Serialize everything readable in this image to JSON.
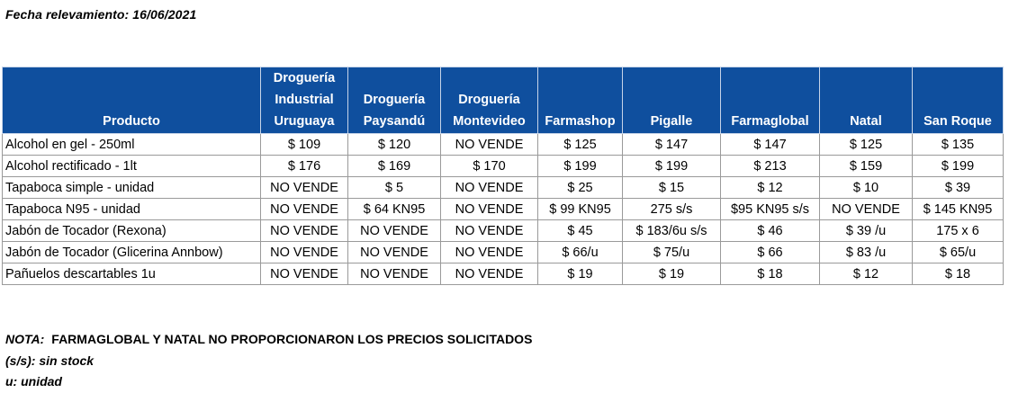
{
  "fecha": "Fecha relevamiento: 16/06/2021",
  "table": {
    "headers": [
      "Producto",
      "Droguería Industrial Uruguaya",
      "Droguería Paysandú",
      "Droguería Montevideo",
      "Farmashop",
      "Pigalle",
      "Farmaglobal",
      "Natal",
      "San Roque"
    ],
    "header_lines": [
      [
        "Producto"
      ],
      [
        "Droguería",
        "Industrial",
        "Uruguaya"
      ],
      [
        "Droguería",
        "Paysandú"
      ],
      [
        "Droguería",
        "Montevideo"
      ],
      [
        "Farmashop"
      ],
      [
        "Pigalle"
      ],
      [
        "Farmaglobal"
      ],
      [
        "Natal"
      ],
      [
        "San Roque"
      ]
    ],
    "rows": [
      [
        "Alcohol en gel  - 250ml",
        "$ 109",
        "$ 120",
        "NO VENDE",
        "$ 125",
        "$ 147",
        "$ 147",
        "$ 125",
        "$ 135"
      ],
      [
        "Alcohol rectificado - 1lt",
        "$ 176",
        "$ 169",
        "$ 170",
        "$ 199",
        "$ 199",
        "$ 213",
        "$ 159",
        "$ 199"
      ],
      [
        "Tapaboca simple - unidad",
        "NO VENDE",
        "$ 5",
        "NO VENDE",
        "$ 25",
        "$ 15",
        "$ 12",
        "$ 10",
        "$ 39"
      ],
      [
        "Tapaboca N95 - unidad",
        "NO VENDE",
        "$ 64  KN95",
        "NO VENDE",
        "$ 99  KN95",
        "275 s/s",
        "$95 KN95 s/s",
        "NO VENDE",
        "$ 145 KN95"
      ],
      [
        "Jabón de Tocador (Rexona)",
        "NO VENDE",
        "NO VENDE",
        "NO VENDE",
        "$ 45",
        "$ 183/6u s/s",
        "$ 46",
        "$ 39 /u",
        "175 x 6"
      ],
      [
        "Jabón de Tocador (Glicerina Annbow)",
        "NO VENDE",
        "NO VENDE",
        "NO VENDE",
        "$ 66/u",
        "$ 75/u",
        "$ 66",
        "$ 83 /u",
        "$ 65/u"
      ],
      [
        "Pañuelos descartables 1u",
        "NO VENDE",
        "NO VENDE",
        "NO VENDE",
        "$ 19",
        "$ 19",
        "$ 18",
        "$ 12",
        "$ 18"
      ]
    ]
  },
  "notes": {
    "nota_label": "NOTA:",
    "nota_text": "FARMAGLOBAL Y NATAL NO PROPORCIONARON LOS PRECIOS SOLICITADOS",
    "ss": "(s/s): sin stock",
    "u": "u: unidad"
  },
  "colors": {
    "header_bg": "#0f4f9e",
    "header_text": "#ffffff"
  }
}
